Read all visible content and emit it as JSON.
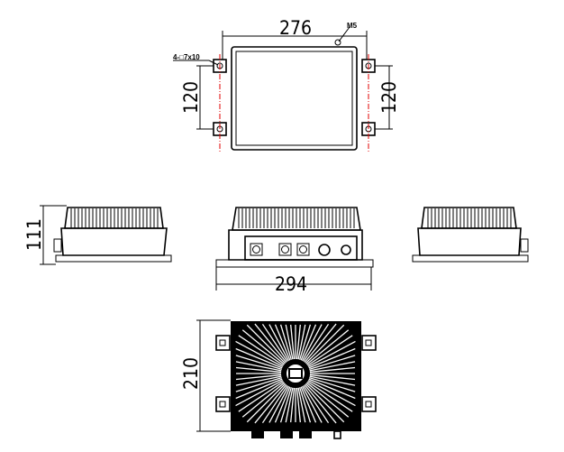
{
  "drawing": {
    "top_view": {
      "width_dim": "276",
      "height_dim_left": "120",
      "height_dim_right": "120",
      "hole_callout": "4-□7x10",
      "screw_callout": "M5"
    },
    "side_views": {
      "height_dim": "111",
      "width_dim": "294"
    },
    "bottom_view": {
      "depth_dim": "210"
    },
    "colors": {
      "lines": "#000000",
      "centerline": "#e00000"
    }
  }
}
